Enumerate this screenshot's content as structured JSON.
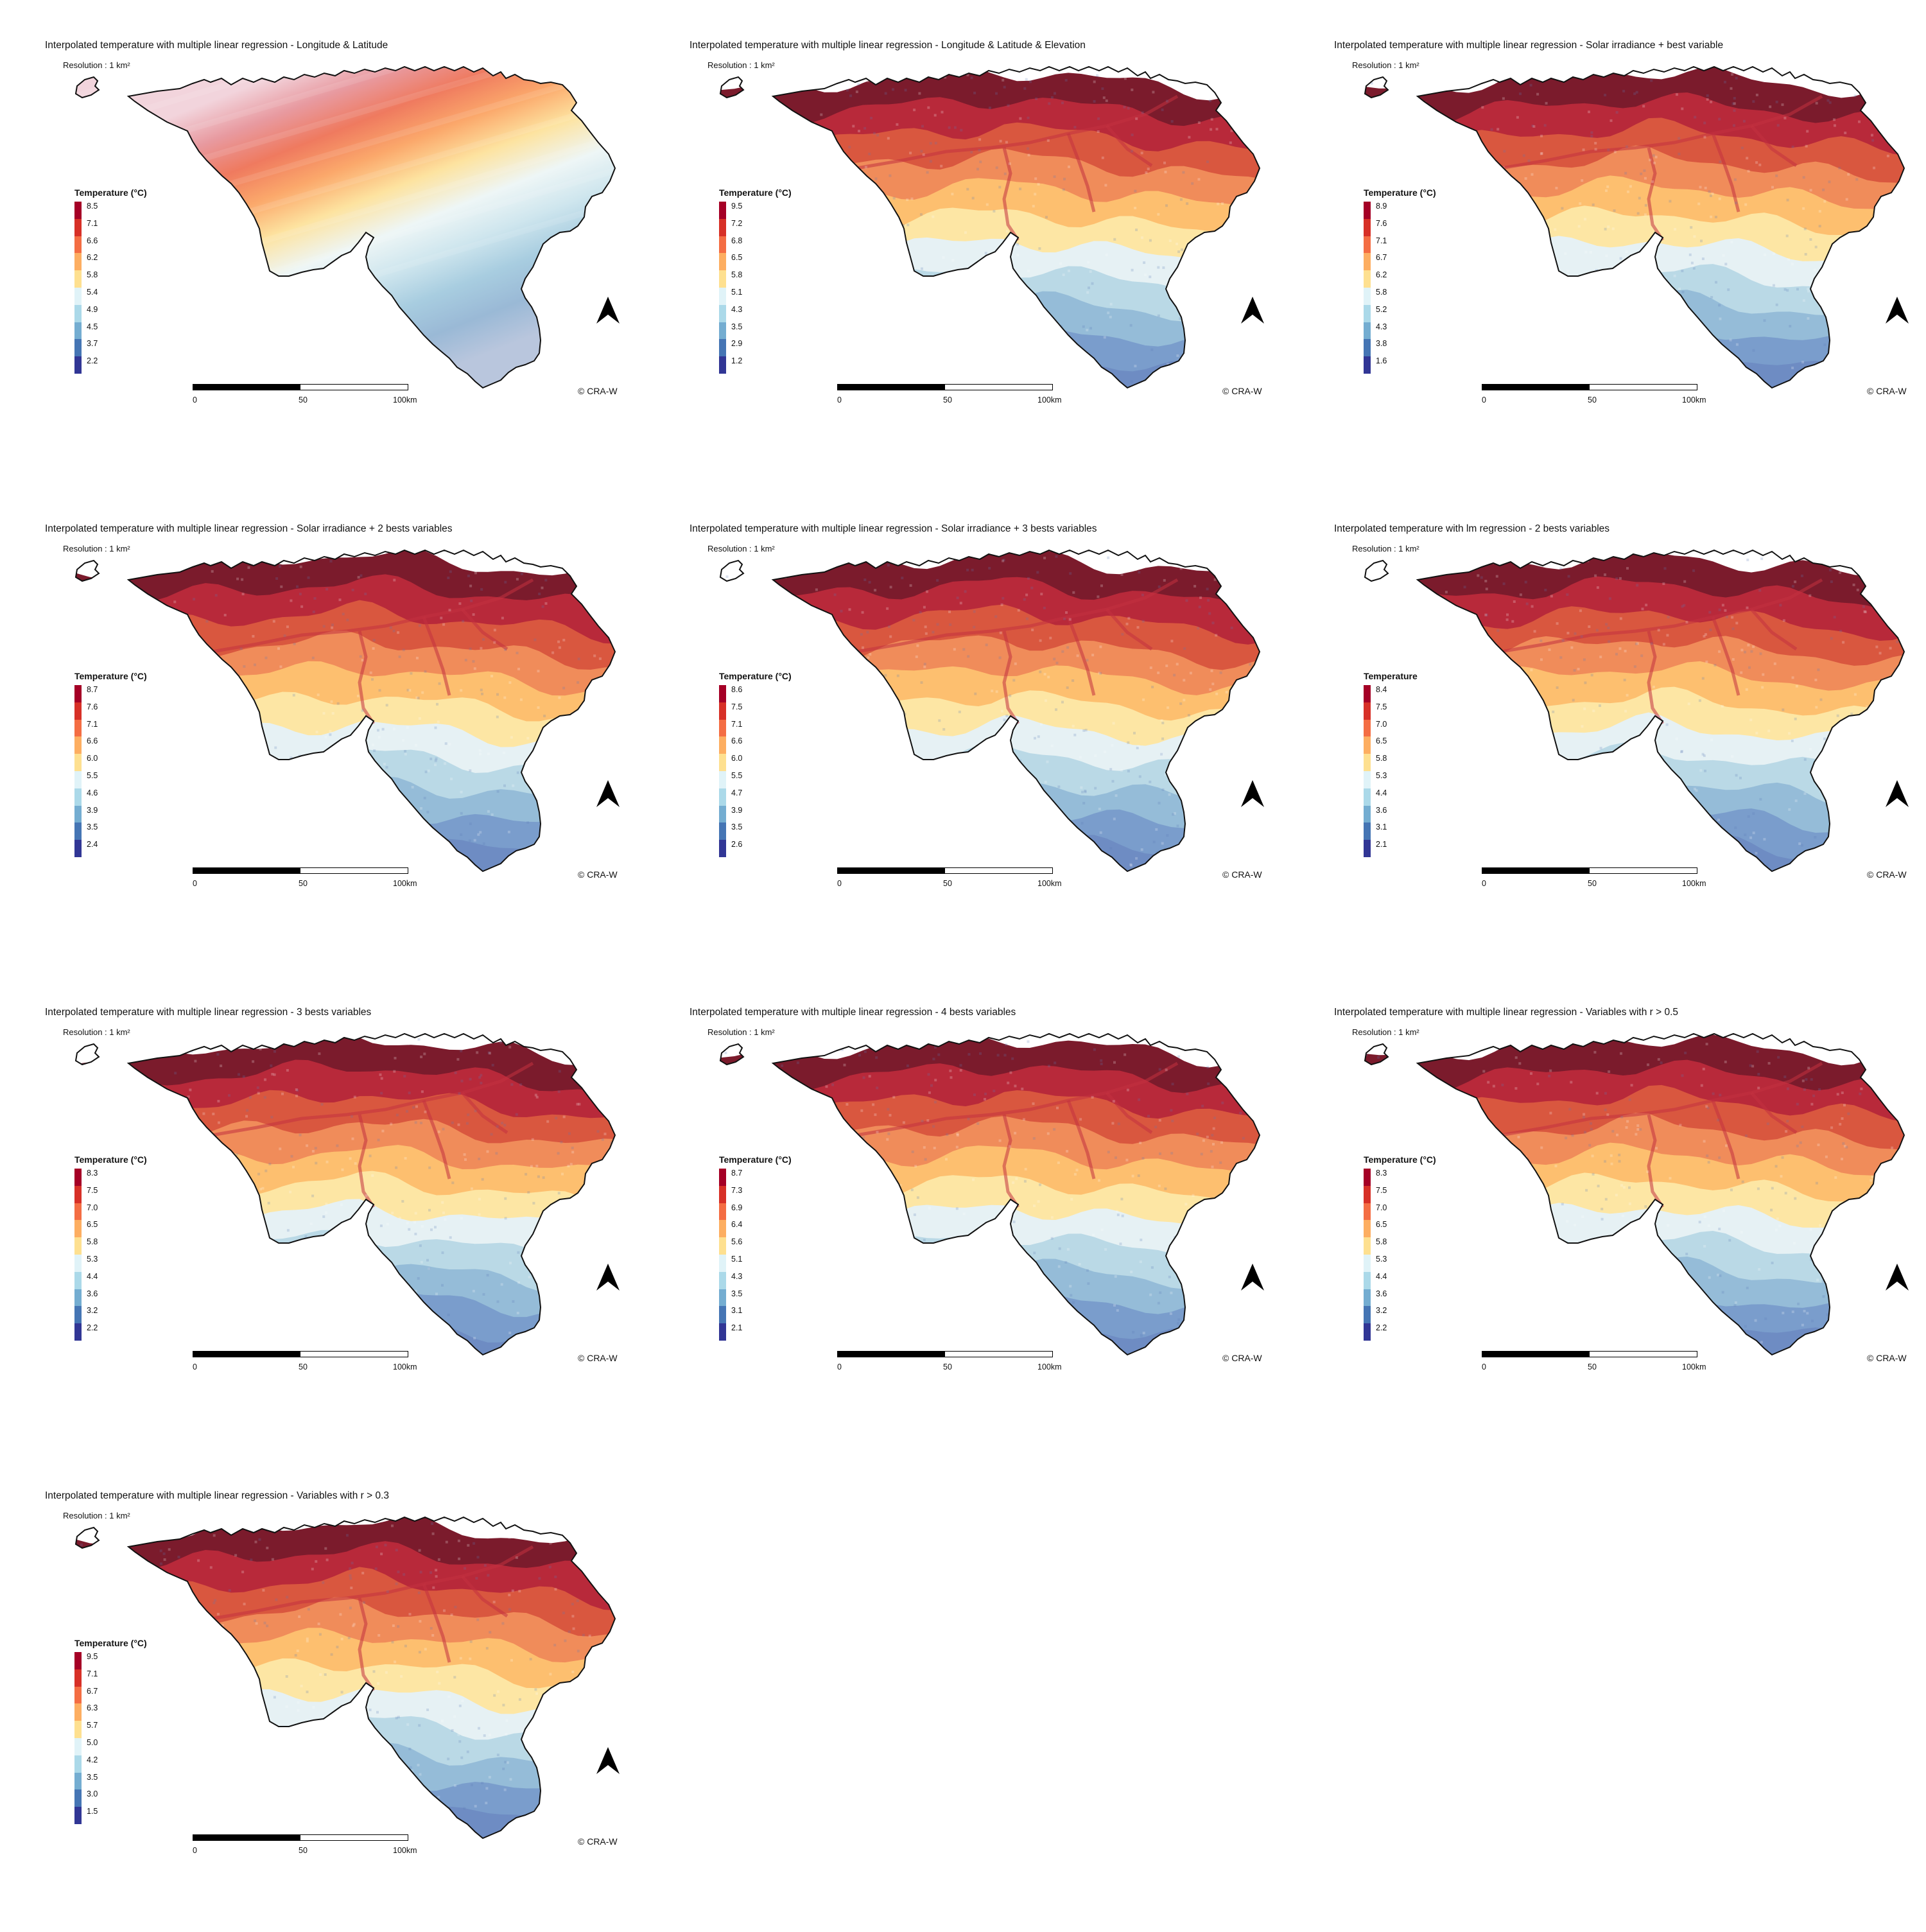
{
  "common": {
    "resolution": "Resolution : 1 km²",
    "copyright": "© CRA-W",
    "scale_labels": [
      "0",
      "50",
      "100km"
    ],
    "north_icon": "north-arrow-icon",
    "legend_colors": [
      "#a50026",
      "#d73027",
      "#f46d43",
      "#fdae61",
      "#fee090",
      "#e0f3f8",
      "#abd9e9",
      "#74add1",
      "#4575b4",
      "#313695"
    ]
  },
  "panels": [
    {
      "title": "Interpolated temperature with multiple linear regression - Longitude & Latitude",
      "legend_title": "Temperature (°C)",
      "legend_values": [
        "8.5",
        "7.1",
        "6.6",
        "6.2",
        "5.8",
        "5.4",
        "4.9",
        "4.5",
        "3.7",
        "2.2"
      ],
      "pattern": "gradient"
    },
    {
      "title": "Interpolated temperature with multiple linear regression - Longitude & Latitude & Elevation",
      "legend_title": "Temperature (°C)",
      "legend_values": [
        "9.5",
        "7.2",
        "6.8",
        "6.5",
        "5.8",
        "5.1",
        "4.3",
        "3.5",
        "2.9",
        "1.2"
      ],
      "pattern": "elevation"
    },
    {
      "title": "Interpolated temperature with multiple linear regression - Solar irradiance + best variable",
      "legend_title": "Temperature (°C)",
      "legend_values": [
        "8.9",
        "7.6",
        "7.1",
        "6.7",
        "6.2",
        "5.8",
        "5.2",
        "4.3",
        "3.8",
        "1.6"
      ],
      "pattern": "elevation"
    },
    {
      "title": "Interpolated temperature with multiple linear regression - Solar irradiance + 2 bests variables",
      "legend_title": "Temperature (°C)",
      "legend_values": [
        "8.7",
        "7.6",
        "7.1",
        "6.6",
        "6.0",
        "5.5",
        "4.6",
        "3.9",
        "3.5",
        "2.4"
      ],
      "pattern": "elevation"
    },
    {
      "title": "Interpolated temperature with multiple linear regression - Solar irradiance + 3 bests variables",
      "legend_title": "Temperature (°C)",
      "legend_values": [
        "8.6",
        "7.5",
        "7.1",
        "6.6",
        "6.0",
        "5.5",
        "4.7",
        "3.9",
        "3.5",
        "2.6"
      ],
      "pattern": "elevation"
    },
    {
      "title": "Interpolated temperature with lm regression - 2 bests variables",
      "legend_title": "Temperature",
      "legend_values": [
        "8.4",
        "7.5",
        "7.0",
        "6.5",
        "5.8",
        "5.3",
        "4.4",
        "3.6",
        "3.1",
        "2.1"
      ],
      "pattern": "elevation"
    },
    {
      "title": "Interpolated temperature with multiple linear regression - 3 bests variables",
      "legend_title": "Temperature (°C)",
      "legend_values": [
        "8.3",
        "7.5",
        "7.0",
        "6.5",
        "5.8",
        "5.3",
        "4.4",
        "3.6",
        "3.2",
        "2.2"
      ],
      "pattern": "elevation"
    },
    {
      "title": "Interpolated temperature with multiple linear regression - 4 bests variables",
      "legend_title": "Temperature (°C)",
      "legend_values": [
        "8.7",
        "7.3",
        "6.9",
        "6.4",
        "5.6",
        "5.1",
        "4.3",
        "3.5",
        "3.1",
        "2.1"
      ],
      "pattern": "elevation"
    },
    {
      "title": "Interpolated temperature with multiple linear regression - Variables with r > 0.5",
      "legend_title": "Temperature (°C)",
      "legend_values": [
        "8.3",
        "7.5",
        "7.0",
        "6.5",
        "5.8",
        "5.3",
        "4.4",
        "3.6",
        "3.2",
        "2.2"
      ],
      "pattern": "elevation"
    },
    {
      "title": "Interpolated temperature with multiple linear regression - Variables with r > 0.3",
      "legend_title": "Temperature (°C)",
      "legend_values": [
        "9.5",
        "7.1",
        "6.7",
        "6.3",
        "5.7",
        "5.0",
        "4.2",
        "3.5",
        "3.0",
        "1.5"
      ],
      "pattern": "elevation"
    }
  ]
}
